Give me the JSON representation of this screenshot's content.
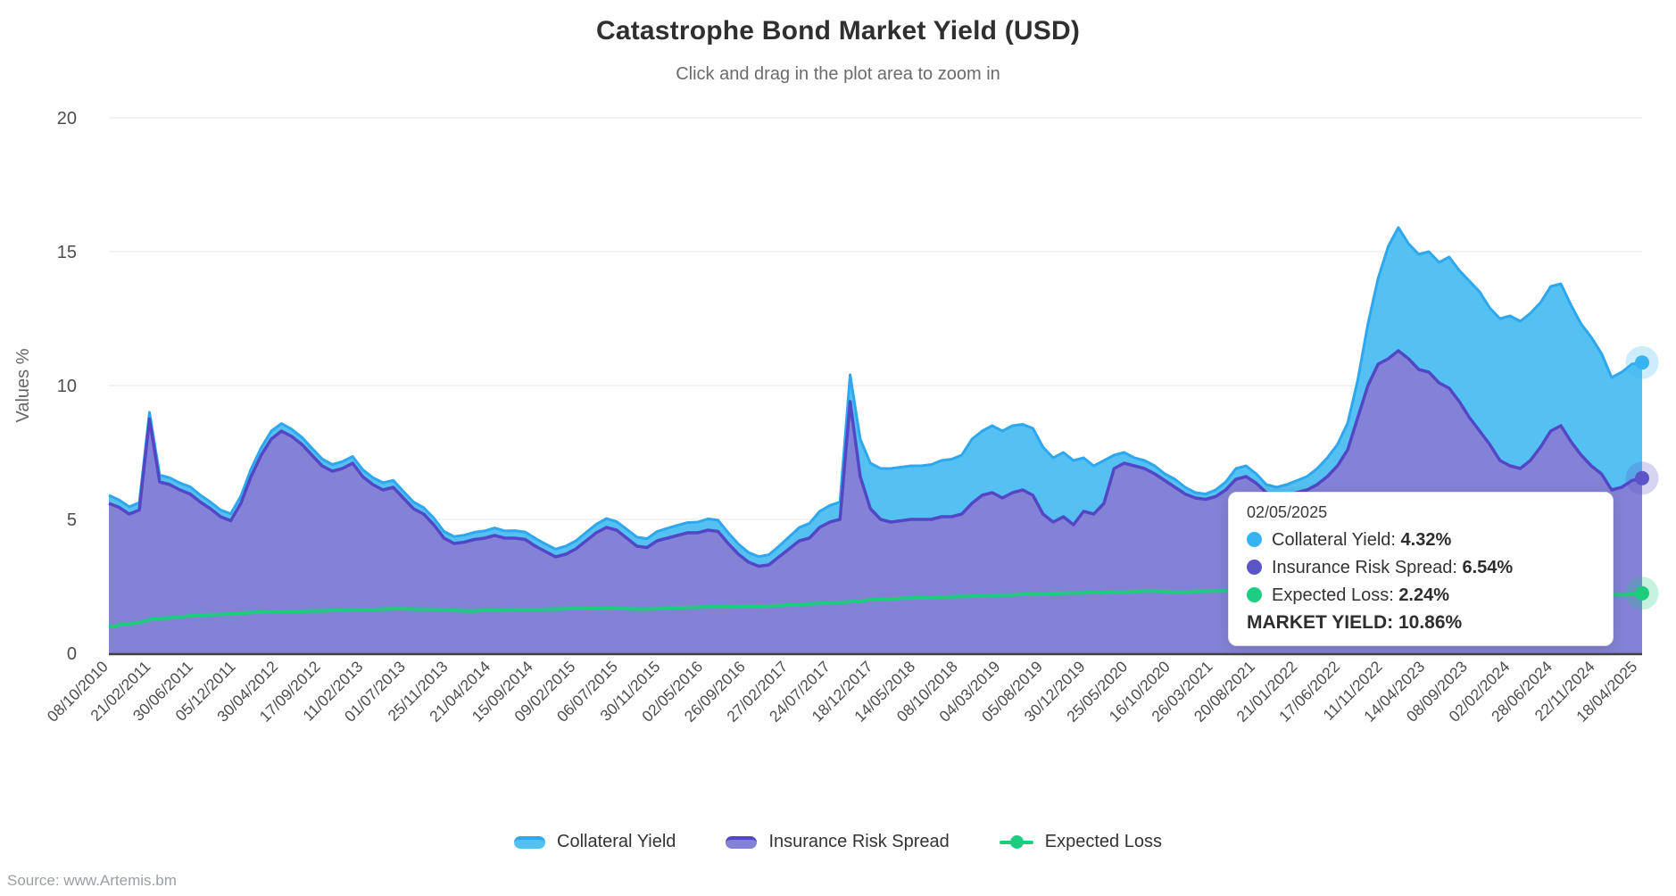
{
  "header": {
    "title": "Catastrophe Bond Market Yield (USD)",
    "subtitle": "Click and drag in the plot area to zoom in"
  },
  "source": {
    "label": "Source: www.Artemis.bm"
  },
  "colors": {
    "background": "#ffffff",
    "grid": "#e6e6e6",
    "axis_line": "#424242",
    "axis_label": "#4d4d4d",
    "axis_title": "#666666",
    "title": "#2f2f2f",
    "subtitle": "#6b6b6b",
    "legend_label": "#333333",
    "source": "#9aa0a6",
    "collateral_line": "#2ea7ee",
    "collateral_fill": "#55c0f2",
    "spread_line": "#5347c5",
    "spread_fill": "#8482d6",
    "expected_loss": "#1ccd7e"
  },
  "tooltip": {
    "date": "02/05/2025",
    "rows": [
      {
        "label": "Collateral Yield:",
        "value": "4.32%",
        "color": "#38b3f2"
      },
      {
        "label": "Insurance Risk Spread:",
        "value": "6.54%",
        "color": "#5b55c8"
      },
      {
        "label": "Expected Loss:",
        "value": "2.24%",
        "color": "#1dcd81"
      }
    ],
    "footer_label": "MARKET YIELD:",
    "footer_value": "10.86%"
  },
  "legend": {
    "items": [
      {
        "label": "Collateral Yield",
        "marker": "area"
      },
      {
        "label": "Insurance Risk Spread",
        "marker": "area"
      },
      {
        "label": "Expected Loss",
        "marker": "line"
      }
    ]
  },
  "chart_data": {
    "type": "area",
    "stacking": "normal",
    "title": "Catastrophe Bond Market Yield (USD)",
    "subtitle": "Click and drag in the plot area to zoom in",
    "ylabel": "Values %",
    "ylim": [
      0,
      20
    ],
    "yticks": [
      0,
      5,
      10,
      15,
      20
    ],
    "grid": "horizontal",
    "legend_position": "bottom",
    "x_range": [
      "08/10/2010",
      "02/05/2025"
    ],
    "x_tick_labels": [
      "08/10/2010",
      "21/02/2011",
      "30/06/2011",
      "05/12/2011",
      "30/04/2012",
      "17/09/2012",
      "11/02/2013",
      "01/07/2013",
      "25/11/2013",
      "21/04/2014",
      "15/09/2014",
      "09/02/2015",
      "06/07/2015",
      "30/11/2015",
      "02/05/2016",
      "26/09/2016",
      "27/02/2017",
      "24/07/2017",
      "18/12/2017",
      "14/05/2018",
      "08/10/2018",
      "04/03/2019",
      "05/08/2019",
      "30/12/2019",
      "25/05/2020",
      "16/10/2020",
      "26/03/2021",
      "20/08/2021",
      "21/01/2022",
      "17/06/2022",
      "11/11/2022",
      "14/04/2023",
      "08/09/2023",
      "02/02/2024",
      "28/06/2024",
      "22/11/2024",
      "18/04/2025"
    ],
    "series": [
      {
        "name": "Collateral Yield",
        "type": "area",
        "stack_order": 2,
        "line_color": "#2ea7ee",
        "fill_color": "#55c0f2",
        "marker_color": "#38b3f2",
        "values": [
          0.3,
          0.28,
          0.27,
          0.28,
          0.25,
          0.26,
          0.25,
          0.26,
          0.27,
          0.26,
          0.25,
          0.25,
          0.26,
          0.27,
          0.28,
          0.28,
          0.3,
          0.28,
          0.27,
          0.27,
          0.26,
          0.26,
          0.25,
          0.26,
          0.25,
          0.26,
          0.26,
          0.27,
          0.26,
          0.25,
          0.25,
          0.24,
          0.25,
          0.25,
          0.26,
          0.26,
          0.27,
          0.27,
          0.28,
          0.27,
          0.28,
          0.28,
          0.29,
          0.28,
          0.29,
          0.3,
          0.3,
          0.31,
          0.32,
          0.33,
          0.32,
          0.33,
          0.34,
          0.33,
          0.35,
          0.37,
          0.38,
          0.38,
          0.4,
          0.42,
          0.42,
          0.4,
          0.38,
          0.36,
          0.36,
          0.38,
          0.4,
          0.45,
          0.5,
          0.55,
          0.6,
          0.62,
          0.65,
          1.0,
          1.4,
          1.7,
          1.9,
          2.0,
          2.0,
          2.0,
          2.0,
          2.05,
          2.1,
          2.15,
          2.2,
          2.4,
          2.4,
          2.5,
          2.5,
          2.5,
          2.45,
          2.5,
          2.5,
          2.4,
          2.4,
          2.4,
          2.0,
          1.8,
          1.6,
          0.5,
          0.4,
          0.3,
          0.3,
          0.3,
          0.25,
          0.3,
          0.25,
          0.2,
          0.2,
          0.25,
          0.3,
          0.4,
          0.4,
          0.35,
          0.3,
          0.35,
          0.4,
          0.45,
          0.5,
          0.6,
          0.7,
          0.8,
          1.0,
          1.4,
          2.3,
          3.2,
          4.2,
          4.6,
          4.3,
          4.3,
          4.5,
          4.5,
          4.9,
          4.9,
          5.1,
          5.2,
          5.1,
          5.3,
          5.6,
          5.5,
          5.5,
          5.4,
          5.4,
          5.3,
          5.1,
          4.9,
          4.8,
          4.5,
          4.2,
          4.3,
          4.35,
          4.32
        ]
      },
      {
        "name": "Insurance Risk Spread",
        "type": "area",
        "stack_order": 1,
        "line_color": "#5347c5",
        "fill_color": "#8482d6",
        "marker_color": "#5b55c8",
        "values": [
          5.6,
          5.45,
          5.2,
          5.35,
          8.75,
          6.4,
          6.3,
          6.1,
          5.95,
          5.65,
          5.4,
          5.1,
          4.95,
          5.6,
          6.6,
          7.4,
          8.0,
          8.3,
          8.1,
          7.8,
          7.4,
          7.0,
          6.8,
          6.9,
          7.1,
          6.6,
          6.3,
          6.1,
          6.2,
          5.8,
          5.4,
          5.2,
          4.8,
          4.3,
          4.1,
          4.15,
          4.25,
          4.3,
          4.4,
          4.3,
          4.3,
          4.25,
          4.0,
          3.8,
          3.6,
          3.7,
          3.9,
          4.2,
          4.5,
          4.7,
          4.6,
          4.3,
          4.0,
          3.95,
          4.2,
          4.3,
          4.4,
          4.5,
          4.5,
          4.6,
          4.55,
          4.1,
          3.7,
          3.4,
          3.25,
          3.3,
          3.6,
          3.9,
          4.2,
          4.3,
          4.7,
          4.9,
          5.0,
          9.4,
          6.6,
          5.4,
          5.0,
          4.9,
          4.95,
          5.0,
          5.0,
          5.0,
          5.1,
          5.1,
          5.2,
          5.6,
          5.9,
          6.0,
          5.8,
          6.0,
          6.1,
          5.9,
          5.2,
          4.9,
          5.1,
          4.8,
          5.3,
          5.2,
          5.6,
          6.9,
          7.1,
          7.0,
          6.9,
          6.7,
          6.45,
          6.2,
          5.95,
          5.8,
          5.75,
          5.85,
          6.1,
          6.5,
          6.6,
          6.35,
          6.0,
          5.85,
          5.9,
          6.0,
          6.1,
          6.3,
          6.6,
          7.0,
          7.6,
          8.8,
          10.0,
          10.8,
          11.0,
          11.3,
          11.0,
          10.6,
          10.5,
          10.1,
          9.9,
          9.4,
          8.8,
          8.3,
          7.8,
          7.2,
          7.0,
          6.9,
          7.2,
          7.7,
          8.3,
          8.5,
          7.9,
          7.4,
          7.0,
          6.7,
          6.1,
          6.2,
          6.45,
          6.54
        ]
      },
      {
        "name": "Expected Loss",
        "type": "line",
        "color": "#1ccd7e",
        "values": [
          1.0,
          1.05,
          1.1,
          1.15,
          1.25,
          1.3,
          1.32,
          1.35,
          1.4,
          1.42,
          1.44,
          1.45,
          1.47,
          1.5,
          1.52,
          1.54,
          1.55,
          1.55,
          1.56,
          1.57,
          1.58,
          1.58,
          1.6,
          1.6,
          1.62,
          1.62,
          1.63,
          1.65,
          1.66,
          1.66,
          1.65,
          1.64,
          1.64,
          1.62,
          1.6,
          1.58,
          1.58,
          1.6,
          1.6,
          1.61,
          1.62,
          1.63,
          1.63,
          1.64,
          1.65,
          1.66,
          1.67,
          1.67,
          1.68,
          1.68,
          1.67,
          1.66,
          1.65,
          1.65,
          1.66,
          1.68,
          1.7,
          1.71,
          1.72,
          1.73,
          1.73,
          1.74,
          1.75,
          1.75,
          1.76,
          1.77,
          1.78,
          1.8,
          1.82,
          1.84,
          1.86,
          1.88,
          1.9,
          1.92,
          1.95,
          2.0,
          2.02,
          2.03,
          2.05,
          2.06,
          2.07,
          2.08,
          2.1,
          2.11,
          2.12,
          2.13,
          2.15,
          2.16,
          2.17,
          2.18,
          2.2,
          2.21,
          2.22,
          2.23,
          2.24,
          2.25,
          2.26,
          2.27,
          2.28,
          2.3,
          2.3,
          2.31,
          2.32,
          2.32,
          2.31,
          2.3,
          2.3,
          2.31,
          2.32,
          2.32,
          2.33,
          2.34,
          2.34,
          2.35,
          2.35,
          2.36,
          2.37,
          2.37,
          2.38,
          2.39,
          2.4,
          2.4,
          2.41,
          2.42,
          2.43,
          2.44,
          2.45,
          2.45,
          2.46,
          2.45,
          2.44,
          2.43,
          2.42,
          2.4,
          2.38,
          2.36,
          2.34,
          2.32,
          2.3,
          2.28,
          2.3,
          2.32,
          2.34,
          2.33,
          2.3,
          2.28,
          2.26,
          2.24,
          2.2,
          2.18,
          2.2,
          2.24
        ]
      }
    ],
    "end_point": {
      "date": "02/05/2025",
      "collateral_yield": 4.32,
      "insurance_risk_spread": 6.54,
      "expected_loss": 2.24,
      "market_yield": 10.86
    }
  }
}
